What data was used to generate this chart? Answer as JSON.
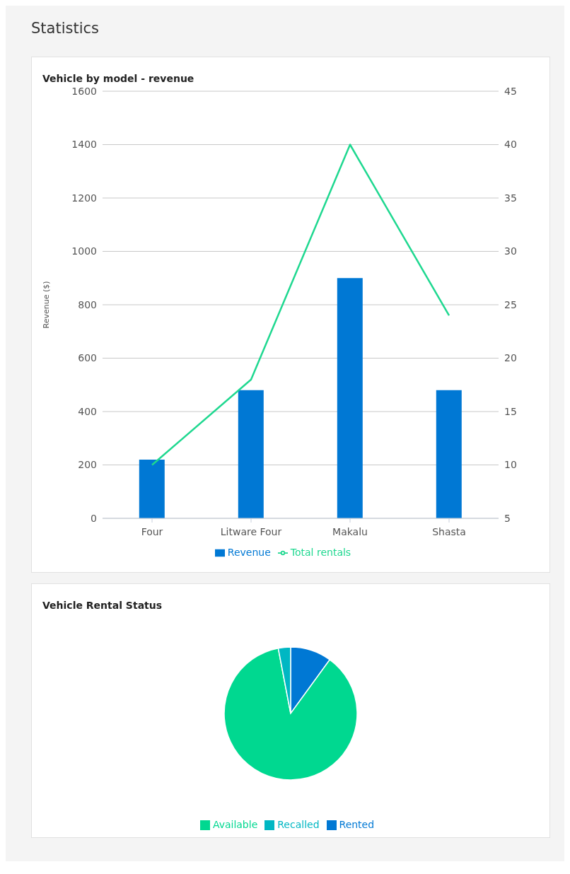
{
  "chart_data": [
    {
      "type": "bar",
      "title": "Vehicle by model - revenue",
      "annotations": [
        "Statistics"
      ],
      "ylabel": "Revenue ($)",
      "categories": [
        "Four",
        "Litware Four",
        "Makalu",
        "Shasta"
      ],
      "series": [
        {
          "name": "Revenue",
          "color": "#0078d4",
          "values": [
            220,
            480,
            900,
            480
          ]
        },
        {
          "name": "Total rentals",
          "type": "line",
          "axis": "y2",
          "color": "#1fd890",
          "values": [
            10,
            18,
            40,
            24
          ]
        }
      ],
      "ylim": [
        0,
        1600
      ],
      "yticks": [
        0,
        200,
        400,
        600,
        800,
        1000,
        1200,
        1400,
        1600
      ],
      "y2lim": [
        5,
        45
      ],
      "y2ticks": [
        5,
        10,
        15,
        20,
        25,
        30,
        35,
        40,
        45
      ],
      "grid": "y",
      "legend": "bottom",
      "marker": "none"
    },
    {
      "type": "pie",
      "title": "Vehicle Rental Status",
      "categories": [
        "Rented",
        "Available",
        "Recalled"
      ],
      "values": [
        10,
        87,
        3
      ],
      "colors": [
        "#0078d4",
        "#00d890",
        "#00b7c3"
      ],
      "legend": "bottom"
    }
  ]
}
